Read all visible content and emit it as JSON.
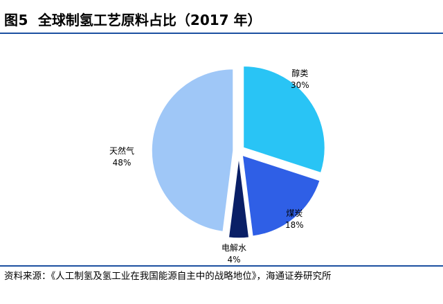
{
  "figure": {
    "number": "图5",
    "title": "全球制氢工艺原料占比（2017 年）"
  },
  "source": "资料来源：《人工制氢及氢工业在我国能源自主中的战略地位》，海通证券研究所",
  "chart_data": {
    "type": "pie",
    "categories": [
      "醇类",
      "煤炭",
      "电解水",
      "天然气"
    ],
    "values": [
      30,
      18,
      4,
      48
    ],
    "value_labels": [
      "30%",
      "18%",
      "4%",
      "48%"
    ],
    "colors": [
      "#29c4f5",
      "#2f5fe6",
      "#0a1f66",
      "#9fc7f7"
    ],
    "exploded": true,
    "start_angle_deg": 0,
    "direction": "clockwise"
  }
}
